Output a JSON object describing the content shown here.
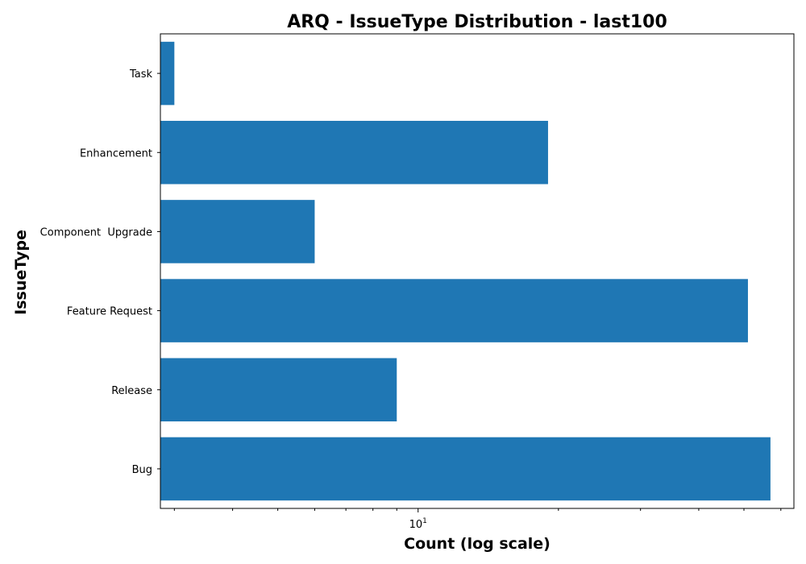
{
  "chart_data": {
    "type": "bar",
    "orientation": "horizontal",
    "title": "ARQ - IssueType Distribution - last100",
    "xlabel": "Count (log scale)",
    "ylabel": "IssueType",
    "x_scale": "log",
    "xlim": [
      2.8,
      64
    ],
    "x_ticks": [
      {
        "base": "10",
        "exp": "1",
        "value": 10
      }
    ],
    "categories": [
      "Bug",
      "Release",
      "Feature Request",
      "Component  Upgrade",
      "Enhancement",
      "Task"
    ],
    "values": [
      57,
      9,
      51,
      6,
      19,
      3
    ],
    "bar_color": "#1f77b4",
    "grid": false
  }
}
